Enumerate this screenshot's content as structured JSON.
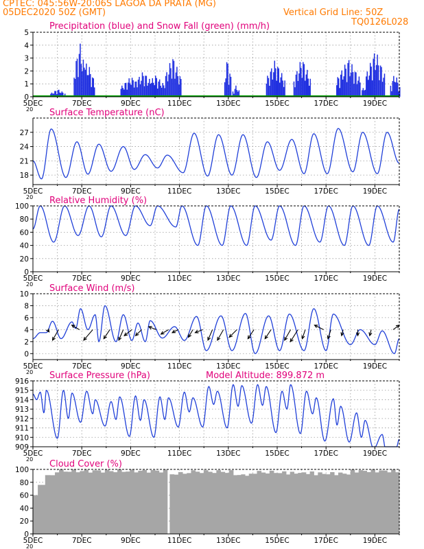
{
  "header": {
    "line1": "CPTEC:   045:56W-20:06S   LAGOA DA PRATA (MG)",
    "line2_left": "05DEC2020 50Z (GMT)",
    "line2_right": "Vertical Grid Line: 50Z",
    "code": "TQ0126L028"
  },
  "colors": {
    "title": "#e0007a",
    "header": "#ff7a00",
    "line": "#1f3fd8",
    "precip": "#1f2fe0",
    "snow": "#00a000",
    "cloud": "#a6a6a6",
    "grid": "#9a9a9a"
  },
  "x_axis": {
    "range_days": [
      0,
      15
    ],
    "tick_labels": [
      "5DEC",
      "7DEC",
      "9DEC",
      "11DEC",
      "13DEC",
      "15DEC",
      "17DEC",
      "19DEC"
    ],
    "tick_days": [
      0,
      2,
      4,
      6,
      8,
      10,
      12,
      14
    ],
    "year_fragment": "20"
  },
  "chart_data": [
    {
      "id": "precip",
      "type": "bar",
      "title": "Precipitation (blue) and Snow Fall (green) (mm/h)",
      "ylim": [
        0,
        5
      ],
      "yticks": [
        0,
        1,
        2,
        3,
        4,
        5
      ],
      "series": [
        {
          "name": "Precipitation",
          "bursts": [
            [
              1.0,
              0.3,
              0.6
            ],
            [
              1.9,
              0.25,
              4.3
            ],
            [
              2.2,
              0.3,
              2.8
            ],
            [
              4.0,
              0.45,
              1.6
            ],
            [
              4.5,
              0.45,
              2.0
            ],
            [
              5.0,
              0.45,
              1.7
            ],
            [
              5.7,
              0.35,
              3.2
            ],
            [
              7.95,
              0.15,
              3.1
            ],
            [
              8.3,
              0.15,
              0.9
            ],
            [
              9.9,
              0.4,
              2.9
            ],
            [
              10.9,
              0.2,
              1.1
            ],
            [
              11.0,
              0.35,
              3.1
            ],
            [
              12.9,
              0.5,
              3.0
            ],
            [
              13.8,
              0.35,
              1.3
            ],
            [
              14.0,
              0.4,
              3.7
            ],
            [
              14.8,
              0.2,
              1.9
            ]
          ]
        },
        {
          "name": "Snow Fall",
          "values": [
            0
          ]
        }
      ]
    },
    {
      "id": "temp",
      "type": "line",
      "title": "Surface Temperature (nC)",
      "ylim": [
        16,
        30
      ],
      "yticks": [
        18,
        21,
        24,
        27
      ],
      "peaks": [
        [
          0.75,
          27.7
        ],
        [
          1.8,
          25.0
        ],
        [
          2.7,
          24.5
        ],
        [
          3.7,
          24.0
        ],
        [
          4.6,
          22.3
        ],
        [
          5.5,
          22.2
        ],
        [
          6.6,
          26.8
        ],
        [
          7.6,
          26.5
        ],
        [
          8.6,
          26.5
        ],
        [
          9.6,
          25.0
        ],
        [
          10.6,
          25.5
        ],
        [
          11.5,
          26.7
        ],
        [
          12.5,
          27.8
        ],
        [
          13.5,
          27.0
        ],
        [
          14.5,
          27.0
        ]
      ],
      "troughs": [
        [
          0.0,
          21.0
        ],
        [
          0.35,
          17.2
        ],
        [
          1.35,
          17.5
        ],
        [
          2.25,
          18.2
        ],
        [
          3.2,
          18.8
        ],
        [
          4.15,
          19.2
        ],
        [
          5.1,
          19.5
        ],
        [
          6.15,
          18.5
        ],
        [
          7.15,
          17.8
        ],
        [
          8.15,
          18.0
        ],
        [
          9.15,
          17.5
        ],
        [
          10.1,
          19.0
        ],
        [
          11.1,
          18.3
        ],
        [
          12.05,
          18.3
        ],
        [
          13.1,
          18.7
        ],
        [
          14.1,
          18.3
        ],
        [
          15.0,
          20.5
        ]
      ]
    },
    {
      "id": "rh",
      "type": "line",
      "title": "Relative Humidity (%)",
      "ylim": [
        0,
        100
      ],
      "yticks": [
        0,
        20,
        40,
        60,
        80,
        100
      ],
      "peaks": [
        [
          0.3,
          100
        ],
        [
          1.3,
          100
        ],
        [
          2.3,
          100
        ],
        [
          3.2,
          100
        ],
        [
          4.2,
          100
        ],
        [
          5.1,
          100
        ],
        [
          6.1,
          100
        ],
        [
          7.1,
          100
        ],
        [
          8.1,
          100
        ],
        [
          9.1,
          100
        ],
        [
          10.1,
          100
        ],
        [
          11.1,
          100
        ],
        [
          12.1,
          100
        ],
        [
          13.1,
          100
        ],
        [
          14.1,
          100
        ]
      ],
      "troughs": [
        [
          0.0,
          65
        ],
        [
          0.85,
          45
        ],
        [
          1.85,
          55
        ],
        [
          2.8,
          53
        ],
        [
          3.8,
          55
        ],
        [
          4.8,
          70
        ],
        [
          5.85,
          68
        ],
        [
          6.75,
          40
        ],
        [
          7.75,
          40
        ],
        [
          8.75,
          40
        ],
        [
          9.75,
          48
        ],
        [
          10.75,
          40
        ],
        [
          11.75,
          45
        ],
        [
          12.75,
          40
        ],
        [
          13.75,
          40
        ],
        [
          14.75,
          45
        ],
        [
          15.0,
          95
        ]
      ]
    },
    {
      "id": "wind",
      "type": "line",
      "title": "Surface Wind (m/s)",
      "ylim": [
        -1,
        10
      ],
      "yticks": [
        0,
        2,
        4,
        6,
        8,
        10
      ],
      "peaks": [
        [
          0.3,
          3.5
        ],
        [
          0.8,
          5.4
        ],
        [
          1.6,
          5.3
        ],
        [
          1.95,
          7.5
        ],
        [
          2.55,
          6.5
        ],
        [
          2.95,
          8.0
        ],
        [
          3.7,
          6.5
        ],
        [
          4.3,
          5.1
        ],
        [
          4.8,
          5.5
        ],
        [
          5.8,
          4.5
        ],
        [
          6.7,
          6.2
        ],
        [
          7.7,
          6.3
        ],
        [
          8.7,
          6.7
        ],
        [
          9.65,
          6.3
        ],
        [
          10.5,
          6.6
        ],
        [
          11.5,
          7.5
        ],
        [
          12.3,
          6.6
        ],
        [
          13.4,
          4.0
        ],
        [
          14.3,
          3.8
        ]
      ],
      "troughs": [
        [
          0.0,
          2.5
        ],
        [
          0.55,
          3.5
        ],
        [
          1.15,
          2.5
        ],
        [
          1.75,
          4.2
        ],
        [
          2.25,
          4.0
        ],
        [
          2.7,
          2.0
        ],
        [
          3.4,
          2.0
        ],
        [
          4.05,
          2.2
        ],
        [
          4.6,
          2.0
        ],
        [
          5.3,
          2.6
        ],
        [
          6.2,
          2.2
        ],
        [
          7.1,
          0.5
        ],
        [
          8.15,
          0.5
        ],
        [
          9.1,
          0.0
        ],
        [
          10.1,
          0.5
        ],
        [
          11.1,
          0.5
        ],
        [
          12.0,
          0.5
        ],
        [
          13.0,
          1.5
        ],
        [
          14.0,
          1.5
        ],
        [
          14.8,
          0.0
        ],
        [
          15.0,
          2.5
        ]
      ],
      "arrows_y": 4.0,
      "arrows": [
        [
          0.6,
          1.0,
          -1.5
        ],
        [
          1.05,
          -4,
          -7
        ],
        [
          1.9,
          -5,
          3
        ],
        [
          2.45,
          -6,
          -7
        ],
        [
          3.15,
          -4,
          -6
        ],
        [
          3.7,
          -3,
          -7
        ],
        [
          4.05,
          -5,
          -4
        ],
        [
          4.45,
          -4,
          -4
        ],
        [
          5.05,
          -5,
          2
        ],
        [
          5.55,
          -5,
          -3
        ],
        [
          5.95,
          -4,
          -2
        ],
        [
          6.55,
          -3,
          -5
        ],
        [
          6.95,
          -5,
          -2
        ],
        [
          7.35,
          -3,
          -7
        ],
        [
          7.8,
          -4,
          -7
        ],
        [
          8.35,
          -5,
          -5
        ],
        [
          9.05,
          -4,
          -6
        ],
        [
          9.75,
          -4,
          -6
        ],
        [
          10.55,
          -4,
          -7
        ],
        [
          10.85,
          -5,
          -8
        ],
        [
          11.15,
          -2,
          -6
        ],
        [
          11.9,
          -6,
          3
        ],
        [
          12.2,
          -2,
          -6
        ],
        [
          12.7,
          -1,
          -4
        ],
        [
          13.3,
          0,
          -4
        ],
        [
          13.85,
          -1,
          -4
        ],
        [
          14.75,
          4,
          3
        ]
      ]
    },
    {
      "id": "pres",
      "type": "line",
      "title": "Surface Pressure (hPa)",
      "extra_label": "Model Altitude: 899.872  m",
      "ylim": [
        909,
        916
      ],
      "yticks": [
        909,
        910,
        911,
        912,
        913,
        914,
        915,
        916
      ],
      "peaks": [
        [
          0.0,
          914.6
        ],
        [
          0.3,
          914.8
        ],
        [
          0.55,
          915.0
        ],
        [
          1.25,
          915.0
        ],
        [
          1.6,
          914.7
        ],
        [
          2.2,
          914.9
        ],
        [
          2.55,
          914.0
        ],
        [
          3.2,
          913.8
        ],
        [
          3.55,
          914.3
        ],
        [
          4.2,
          914.4
        ],
        [
          4.55,
          914.0
        ],
        [
          5.2,
          914.3
        ],
        [
          5.55,
          914.2
        ],
        [
          6.2,
          914.8
        ],
        [
          6.55,
          914.2
        ],
        [
          7.2,
          915.4
        ],
        [
          7.55,
          914.9
        ],
        [
          8.2,
          915.6
        ],
        [
          8.55,
          915.5
        ],
        [
          9.2,
          915.6
        ],
        [
          9.55,
          915.4
        ],
        [
          10.2,
          914.9
        ],
        [
          10.55,
          915.6
        ],
        [
          11.2,
          914.9
        ],
        [
          11.6,
          914.2
        ],
        [
          12.3,
          914.1
        ],
        [
          12.6,
          913.3
        ],
        [
          13.25,
          912.6
        ],
        [
          13.6,
          911.8
        ],
        [
          14.3,
          910.3
        ],
        [
          15.0,
          909.8
        ]
      ],
      "troughs": [
        [
          0.15,
          914.0
        ],
        [
          0.45,
          912.6
        ],
        [
          1.0,
          909.9
        ],
        [
          1.45,
          912.0
        ],
        [
          1.95,
          911.6
        ],
        [
          2.45,
          912.5
        ],
        [
          2.95,
          911.2
        ],
        [
          3.4,
          911.9
        ],
        [
          3.95,
          910.1
        ],
        [
          4.4,
          911.8
        ],
        [
          4.95,
          910.0
        ],
        [
          5.4,
          911.9
        ],
        [
          5.95,
          911.1
        ],
        [
          6.4,
          912.7
        ],
        [
          6.95,
          911.1
        ],
        [
          7.4,
          913.5
        ],
        [
          7.95,
          911.0
        ],
        [
          8.4,
          913.3
        ],
        [
          8.95,
          911.5
        ],
        [
          9.4,
          913.4
        ],
        [
          9.95,
          910.5
        ],
        [
          10.4,
          913.0
        ],
        [
          10.95,
          910.4
        ],
        [
          11.45,
          912.5
        ],
        [
          11.95,
          909.6
        ],
        [
          12.45,
          911.3
        ],
        [
          12.95,
          909.5
        ],
        [
          13.45,
          910.0
        ],
        [
          13.95,
          908.8
        ],
        [
          14.45,
          908.6
        ],
        [
          14.85,
          908.6
        ]
      ]
    },
    {
      "id": "cloud",
      "type": "bar",
      "title": "Cloud Cover (%)",
      "ylim": [
        0,
        100
      ],
      "yticks": [
        0,
        20,
        40,
        60,
        80,
        100
      ],
      "segments": [
        [
          0.0,
          0.2,
          60
        ],
        [
          0.2,
          0.5,
          76
        ],
        [
          0.5,
          0.9,
          95
        ],
        [
          0.9,
          5.5,
          99
        ],
        [
          5.5,
          5.6,
          0
        ],
        [
          5.6,
          6.3,
          95
        ],
        [
          6.3,
          8.2,
          98
        ],
        [
          8.2,
          9.0,
          93
        ],
        [
          9.0,
          10.2,
          97
        ],
        [
          10.2,
          11.5,
          96
        ],
        [
          11.5,
          13.0,
          95
        ],
        [
          13.0,
          15.0,
          99
        ]
      ]
    }
  ]
}
